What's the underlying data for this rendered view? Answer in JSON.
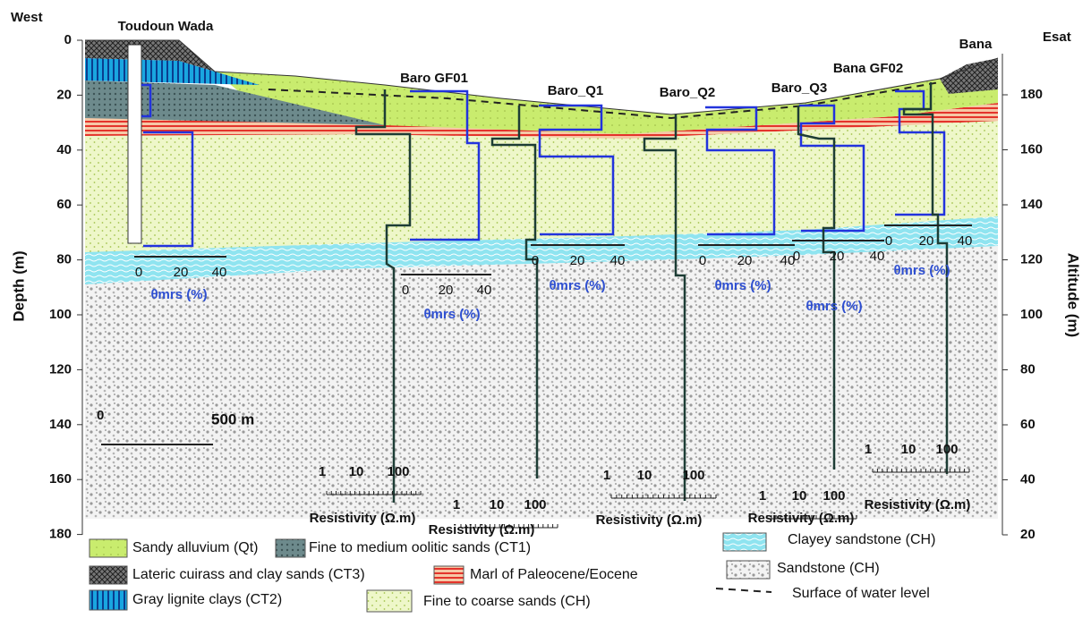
{
  "labels": {
    "west": "West",
    "east": "Esat"
  },
  "left_axis": {
    "title": "Depth (m)",
    "ticks": [
      "0",
      "20",
      "40",
      "60",
      "80",
      "100",
      "120",
      "140",
      "160",
      "180"
    ]
  },
  "right_axis": {
    "title": "Altitude (m)",
    "ticks": [
      "180",
      "160",
      "140",
      "120",
      "100",
      "80",
      "60",
      "40",
      "20"
    ]
  },
  "sites": [
    "Toudoun Wada",
    "Baro GF01",
    "Baro_Q1",
    "Baro_Q2",
    "Baro_Q3",
    "Bana GF02",
    "Bana"
  ],
  "theta_axes": [
    {
      "ticks": [
        "0",
        "20",
        "40"
      ],
      "label": "θmrs (%)"
    },
    {
      "ticks": [
        "0",
        "20",
        "40"
      ],
      "label": "θmrs (%)"
    },
    {
      "ticks": [
        "0",
        "20",
        "40"
      ],
      "label": "θmrs (%)"
    },
    {
      "ticks": [
        "0",
        "20",
        "40"
      ],
      "label": "θmrs (%)"
    },
    {
      "ticks": [
        "0",
        "20",
        "40"
      ],
      "label": "θmrs (%)"
    },
    {
      "ticks": [
        "0",
        "20",
        "40"
      ],
      "label": "θmrs (%)"
    }
  ],
  "resistivity_axes": [
    {
      "ticks": [
        "1",
        "10",
        "100"
      ],
      "label": "Resistivity (Ω.m)"
    },
    {
      "ticks": [
        "1",
        "10",
        "100"
      ],
      "label": "Resistivity (Ω.m)"
    },
    {
      "ticks": [
        "1",
        "10",
        "100"
      ],
      "label": "Resistivity (Ω.m)"
    },
    {
      "ticks": [
        "1",
        "10",
        "100"
      ],
      "label": "Resistivity (Ω.m)"
    },
    {
      "ticks": [
        "1",
        "10",
        "100"
      ],
      "label": "Resistivity (Ω.m)"
    }
  ],
  "scale_bar": {
    "start": "0",
    "end": "500 m"
  },
  "legend": [
    "Sandy alluvium (Qt)",
    "Fine to medium oolitic sands (CT1)",
    "Clayey sandstone (CH)",
    "Lateric cuirass and clay sands (CT3)",
    "Marl of Paleocene/Eocene",
    "Sandstone (CH)",
    "Gray lignite clays (CT2)",
    "Fine to coarse sands  (CH)",
    "Surface of water level"
  ]
}
